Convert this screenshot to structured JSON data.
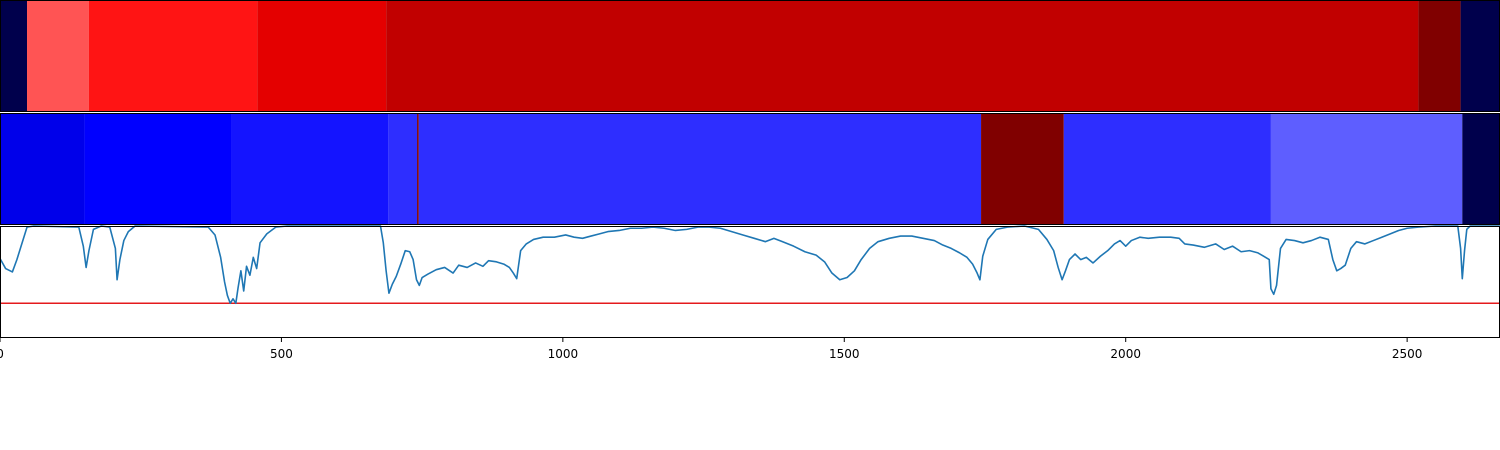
{
  "chart_data": {
    "type": "heatmap",
    "title": "",
    "xlabel": "",
    "ylabel": "",
    "xlim": [
      0,
      2665
    ],
    "xticks": [
      0,
      500,
      1000,
      1500,
      2000,
      2500
    ],
    "xtick_labels": [
      "0",
      "500",
      "1000",
      "1500",
      "2000",
      "2500"
    ],
    "grid": false,
    "bands": [
      {
        "segments": [
          {
            "start": 0,
            "end": 48,
            "color": "#00004c"
          },
          {
            "start": 48,
            "end": 158,
            "color": "#ff5454"
          },
          {
            "start": 158,
            "end": 457,
            "color": "#ff1414"
          },
          {
            "start": 457,
            "end": 686,
            "color": "#e40000"
          },
          {
            "start": 686,
            "end": 2520,
            "color": "#c10000"
          },
          {
            "start": 2520,
            "end": 2595,
            "color": "#800000"
          },
          {
            "start": 2595,
            "end": 2665,
            "color": "#00004c"
          }
        ]
      },
      {
        "segments": [
          {
            "start": 0,
            "end": 150,
            "color": "#0000ea"
          },
          {
            "start": 150,
            "end": 412,
            "color": "#0000ff"
          },
          {
            "start": 412,
            "end": 690,
            "color": "#1414ff"
          },
          {
            "start": 690,
            "end": 741,
            "color": "#2e2eff"
          },
          {
            "start": 741,
            "end": 744,
            "color": "#800000"
          },
          {
            "start": 744,
            "end": 1743,
            "color": "#2e2eff"
          },
          {
            "start": 1743,
            "end": 1890,
            "color": "#800000"
          },
          {
            "start": 1890,
            "end": 2258,
            "color": "#2e2eff"
          },
          {
            "start": 2258,
            "end": 2598,
            "color": "#5e5eff"
          },
          {
            "start": 2598,
            "end": 2665,
            "color": "#00004c"
          }
        ]
      }
    ],
    "line": {
      "color": "#1f77b4",
      "ylim": [
        0,
        1
      ],
      "threshold": {
        "value": 0.31,
        "color": "#e41a1c"
      },
      "points": [
        [
          0,
          0.71
        ],
        [
          10,
          0.62
        ],
        [
          22,
          0.59
        ],
        [
          30,
          0.7
        ],
        [
          48,
          0.99
        ],
        [
          60,
          1.0
        ],
        [
          140,
          0.99
        ],
        [
          148,
          0.82
        ],
        [
          153,
          0.63
        ],
        [
          158,
          0.78
        ],
        [
          166,
          0.97
        ],
        [
          180,
          1.0
        ],
        [
          195,
          0.99
        ],
        [
          205,
          0.8
        ],
        [
          208,
          0.52
        ],
        [
          213,
          0.7
        ],
        [
          220,
          0.87
        ],
        [
          228,
          0.95
        ],
        [
          240,
          1.0
        ],
        [
          370,
          0.99
        ],
        [
          382,
          0.92
        ],
        [
          392,
          0.72
        ],
        [
          399,
          0.5
        ],
        [
          404,
          0.38
        ],
        [
          409,
          0.31
        ],
        [
          414,
          0.35
        ],
        [
          419,
          0.31
        ],
        [
          423,
          0.45
        ],
        [
          428,
          0.6
        ],
        [
          433,
          0.42
        ],
        [
          438,
          0.64
        ],
        [
          444,
          0.56
        ],
        [
          450,
          0.72
        ],
        [
          456,
          0.62
        ],
        [
          462,
          0.85
        ],
        [
          474,
          0.93
        ],
        [
          490,
          0.99
        ],
        [
          510,
          1.0
        ],
        [
          676,
          1.0
        ],
        [
          681,
          0.85
        ],
        [
          686,
          0.6
        ],
        [
          691,
          0.4
        ],
        [
          697,
          0.48
        ],
        [
          704,
          0.55
        ],
        [
          712,
          0.66
        ],
        [
          720,
          0.78
        ],
        [
          728,
          0.77
        ],
        [
          734,
          0.7
        ],
        [
          740,
          0.52
        ],
        [
          745,
          0.47
        ],
        [
          750,
          0.54
        ],
        [
          760,
          0.57
        ],
        [
          775,
          0.61
        ],
        [
          790,
          0.63
        ],
        [
          805,
          0.58
        ],
        [
          815,
          0.65
        ],
        [
          830,
          0.63
        ],
        [
          845,
          0.67
        ],
        [
          858,
          0.64
        ],
        [
          868,
          0.69
        ],
        [
          882,
          0.68
        ],
        [
          895,
          0.66
        ],
        [
          905,
          0.63
        ],
        [
          912,
          0.58
        ],
        [
          918,
          0.53
        ],
        [
          925,
          0.78
        ],
        [
          935,
          0.84
        ],
        [
          948,
          0.88
        ],
        [
          965,
          0.9
        ],
        [
          985,
          0.9
        ],
        [
          1005,
          0.92
        ],
        [
          1020,
          0.9
        ],
        [
          1035,
          0.89
        ],
        [
          1050,
          0.91
        ],
        [
          1065,
          0.93
        ],
        [
          1080,
          0.95
        ],
        [
          1100,
          0.96
        ],
        [
          1120,
          0.98
        ],
        [
          1140,
          0.98
        ],
        [
          1160,
          0.99
        ],
        [
          1180,
          0.98
        ],
        [
          1200,
          0.96
        ],
        [
          1220,
          0.97
        ],
        [
          1240,
          0.99
        ],
        [
          1260,
          0.99
        ],
        [
          1280,
          0.98
        ],
        [
          1300,
          0.95
        ],
        [
          1320,
          0.92
        ],
        [
          1340,
          0.89
        ],
        [
          1360,
          0.86
        ],
        [
          1375,
          0.89
        ],
        [
          1390,
          0.86
        ],
        [
          1410,
          0.82
        ],
        [
          1430,
          0.77
        ],
        [
          1450,
          0.74
        ],
        [
          1465,
          0.68
        ],
        [
          1478,
          0.58
        ],
        [
          1492,
          0.52
        ],
        [
          1505,
          0.54
        ],
        [
          1518,
          0.6
        ],
        [
          1530,
          0.7
        ],
        [
          1545,
          0.8
        ],
        [
          1560,
          0.86
        ],
        [
          1580,
          0.89
        ],
        [
          1600,
          0.91
        ],
        [
          1620,
          0.91
        ],
        [
          1640,
          0.89
        ],
        [
          1660,
          0.87
        ],
        [
          1675,
          0.83
        ],
        [
          1690,
          0.8
        ],
        [
          1705,
          0.76
        ],
        [
          1718,
          0.72
        ],
        [
          1728,
          0.66
        ],
        [
          1736,
          0.58
        ],
        [
          1741,
          0.52
        ],
        [
          1746,
          0.73
        ],
        [
          1755,
          0.88
        ],
        [
          1770,
          0.97
        ],
        [
          1790,
          0.99
        ],
        [
          1820,
          1.0
        ],
        [
          1845,
          0.97
        ],
        [
          1860,
          0.88
        ],
        [
          1872,
          0.78
        ],
        [
          1880,
          0.63
        ],
        [
          1887,
          0.52
        ],
        [
          1893,
          0.6
        ],
        [
          1900,
          0.7
        ],
        [
          1910,
          0.75
        ],
        [
          1920,
          0.7
        ],
        [
          1930,
          0.72
        ],
        [
          1942,
          0.67
        ],
        [
          1955,
          0.73
        ],
        [
          1968,
          0.78
        ],
        [
          1980,
          0.84
        ],
        [
          1990,
          0.87
        ],
        [
          2000,
          0.82
        ],
        [
          2010,
          0.87
        ],
        [
          2025,
          0.9
        ],
        [
          2040,
          0.89
        ],
        [
          2060,
          0.9
        ],
        [
          2080,
          0.9
        ],
        [
          2095,
          0.89
        ],
        [
          2105,
          0.84
        ],
        [
          2120,
          0.83
        ],
        [
          2140,
          0.81
        ],
        [
          2160,
          0.84
        ],
        [
          2175,
          0.79
        ],
        [
          2190,
          0.82
        ],
        [
          2205,
          0.77
        ],
        [
          2220,
          0.78
        ],
        [
          2235,
          0.76
        ],
        [
          2245,
          0.73
        ],
        [
          2255,
          0.7
        ],
        [
          2258,
          0.44
        ],
        [
          2263,
          0.39
        ],
        [
          2268,
          0.47
        ],
        [
          2275,
          0.8
        ],
        [
          2285,
          0.88
        ],
        [
          2300,
          0.87
        ],
        [
          2315,
          0.85
        ],
        [
          2330,
          0.87
        ],
        [
          2345,
          0.9
        ],
        [
          2360,
          0.88
        ],
        [
          2368,
          0.7
        ],
        [
          2375,
          0.6
        ],
        [
          2382,
          0.62
        ],
        [
          2390,
          0.65
        ],
        [
          2400,
          0.8
        ],
        [
          2410,
          0.86
        ],
        [
          2425,
          0.84
        ],
        [
          2440,
          0.87
        ],
        [
          2455,
          0.9
        ],
        [
          2470,
          0.93
        ],
        [
          2485,
          0.96
        ],
        [
          2500,
          0.98
        ],
        [
          2520,
          0.99
        ],
        [
          2550,
          1.0
        ],
        [
          2590,
          1.0
        ],
        [
          2595,
          0.8
        ],
        [
          2598,
          0.53
        ],
        [
          2602,
          0.78
        ],
        [
          2606,
          0.97
        ],
        [
          2612,
          1.0
        ],
        [
          2665,
          1.0
        ]
      ]
    }
  }
}
